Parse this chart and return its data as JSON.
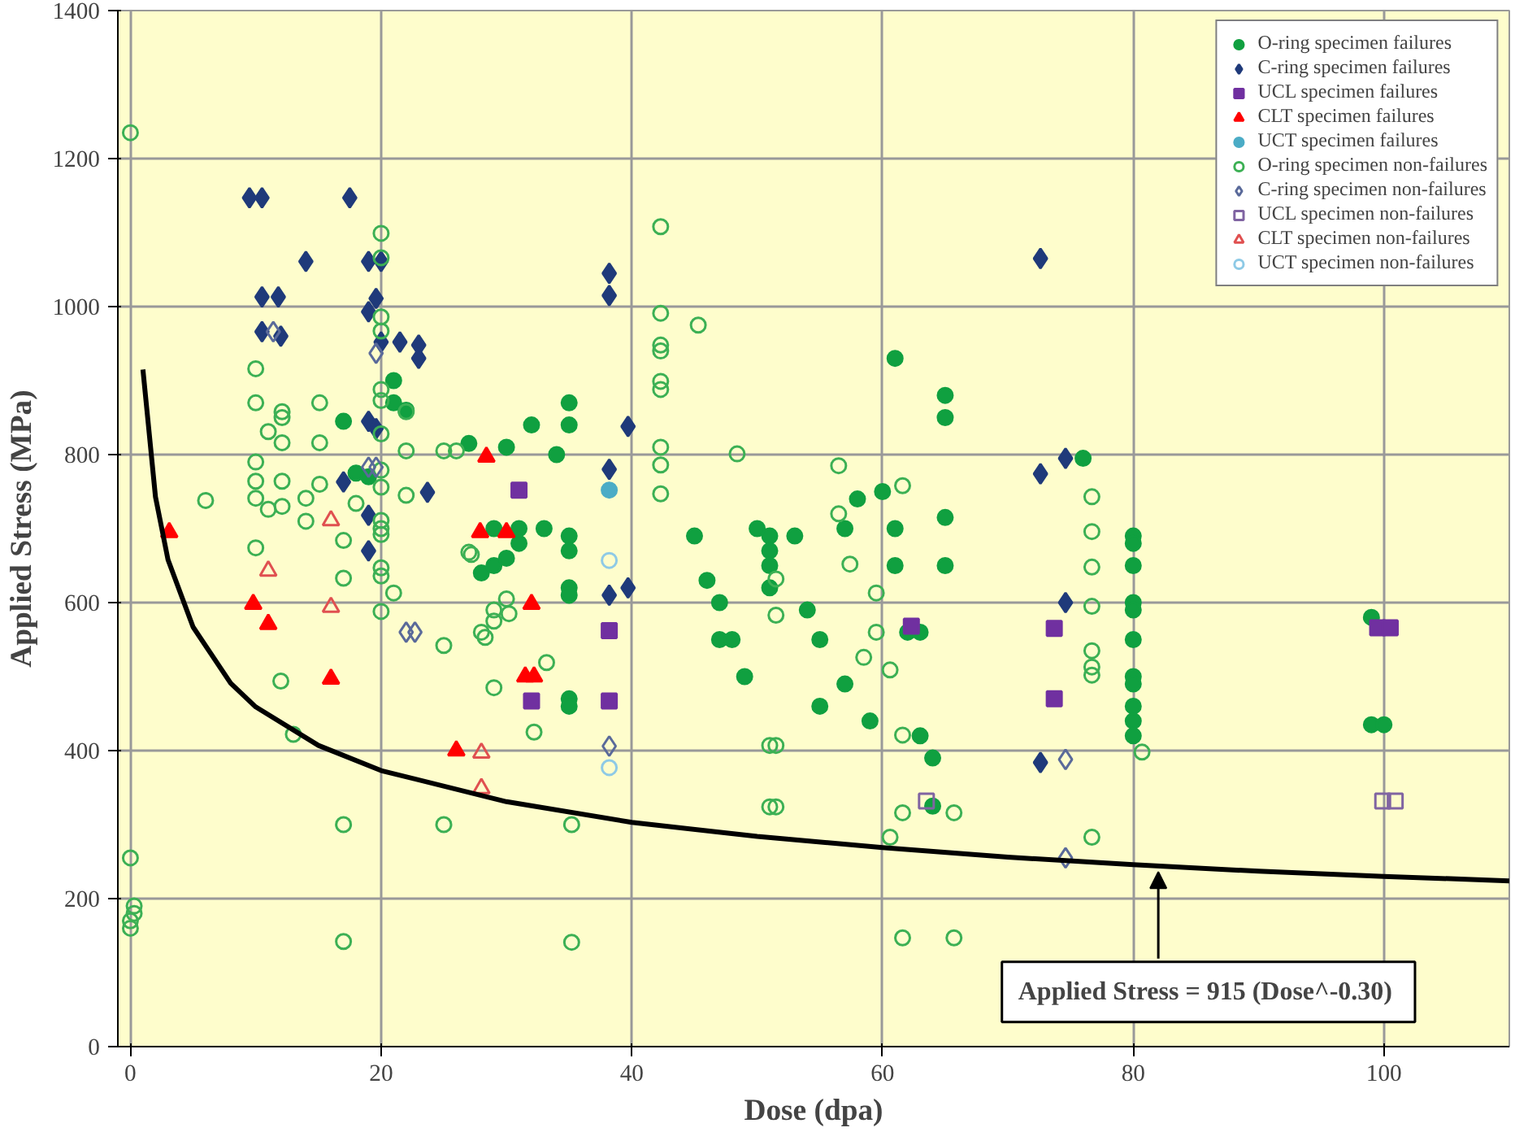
{
  "chart_data": {
    "type": "scatter",
    "xlabel": "Dose (dpa)",
    "ylabel": "Applied Stress (MPa)",
    "xlim": [
      -1,
      110
    ],
    "ylim": [
      0,
      1400
    ],
    "xticks": [
      0,
      20,
      40,
      60,
      80,
      100
    ],
    "yticks": [
      0,
      200,
      400,
      600,
      800,
      1000,
      1200,
      1400
    ],
    "grid": true,
    "legend": "top right",
    "series": [
      {
        "name": "O-ring specimen failures",
        "color": "#10a040",
        "marker": "circle",
        "x": [
          17,
          18,
          19,
          21,
          21,
          22,
          27,
          28,
          29,
          29,
          30,
          30,
          31,
          31,
          32,
          33,
          34,
          35,
          35,
          35,
          35,
          35,
          35,
          35,
          35,
          45,
          46,
          47,
          47,
          48,
          49,
          50,
          51,
          51,
          51,
          51,
          53,
          54,
          55,
          55,
          57,
          57,
          58,
          59,
          60,
          61,
          61,
          61,
          62,
          63,
          63,
          64,
          64,
          65,
          65,
          65,
          65,
          76,
          80,
          80,
          80,
          80,
          80,
          80,
          80,
          80,
          80,
          80,
          80,
          99,
          99,
          100
        ],
        "values": [
          845,
          775,
          770,
          870,
          900,
          860,
          815,
          640,
          700,
          650,
          810,
          660,
          680,
          700,
          840,
          700,
          800,
          870,
          840,
          690,
          670,
          620,
          610,
          470,
          460,
          690,
          630,
          600,
          550,
          550,
          500,
          700,
          690,
          670,
          650,
          620,
          690,
          590,
          550,
          460,
          700,
          490,
          740,
          440,
          750,
          930,
          700,
          650,
          560,
          560,
          420,
          390,
          325,
          880,
          850,
          715,
          650,
          795,
          690,
          680,
          650,
          600,
          590,
          550,
          500,
          490,
          460,
          440,
          420,
          580,
          435,
          435
        ]
      },
      {
        "name": "C-ring specimen failures",
        "color": "#1f3a7a",
        "marker": "diamond",
        "x": [
          9.5,
          10.5,
          17.5,
          14,
          19,
          20,
          10.5,
          11.8,
          19.6,
          19,
          10.5,
          12,
          20,
          21.5,
          23,
          23,
          17,
          19,
          19,
          19.6,
          19,
          23.7,
          38.2,
          38.2,
          39.7,
          38.2,
          38.2,
          39.7,
          72.6,
          72.6,
          74.6,
          74.6,
          72.6
        ],
        "values": [
          1147,
          1147,
          1147,
          1061,
          1061,
          1061,
          1013,
          1013,
          1011,
          993,
          966,
          960,
          952,
          952,
          948,
          930,
          763,
          718,
          670,
          835,
          845,
          749,
          1045,
          1015,
          838,
          780,
          610,
          620,
          1065,
          774,
          795,
          600,
          384
        ]
      },
      {
        "name": "UCL specimen failures",
        "color": "#7030a0",
        "marker": "square",
        "x": [
          31,
          32,
          38.2,
          38.2,
          62.3,
          73.7,
          73.7,
          99.5,
          100.5
        ],
        "values": [
          752,
          467,
          562,
          467,
          568,
          565,
          470,
          566,
          566
        ]
      },
      {
        "name": "CLT specimen failures",
        "color": "#ff0000",
        "marker": "triangle",
        "x": [
          3.1,
          9.8,
          11,
          16,
          26,
          28.4,
          27.9,
          30,
          32,
          31.5,
          32.2
        ],
        "values": [
          695,
          598,
          571,
          497,
          400,
          797,
          695,
          695,
          598,
          500,
          500
        ]
      },
      {
        "name": "UCT specimen failures",
        "color": "#4bacc6",
        "marker": "circle",
        "x": [
          38.2
        ],
        "values": [
          752
        ]
      },
      {
        "name": "O-ring specimen non-failures",
        "color": "#3cb054",
        "marker": "circle_open",
        "x": [
          0,
          0,
          0.3,
          0.3,
          0,
          0,
          12,
          13,
          17,
          17,
          25,
          25,
          6,
          10,
          10,
          10,
          10,
          10,
          10,
          12.1,
          12.1,
          12.1,
          12.1,
          12.1,
          11,
          11,
          15.1,
          15.1,
          15.1,
          14,
          14,
          17,
          18,
          17,
          20,
          20,
          20,
          20,
          20,
          20,
          20,
          20,
          20,
          20,
          20,
          20,
          20,
          20,
          20,
          22,
          22,
          22,
          21,
          25,
          26,
          27,
          42.3,
          42.3,
          45.3,
          42.3,
          42.3,
          42.3,
          42.3,
          42.3,
          42.3,
          42.3,
          48.4,
          27.2,
          29,
          29,
          28,
          30,
          30.2,
          28.3,
          33.2,
          29,
          32.2,
          35.2,
          35.2,
          51,
          51,
          56.5,
          61.6,
          56.5,
          57.4,
          59.5,
          51.5,
          51.5,
          59.5,
          58.5,
          60.6,
          51.5,
          51.5,
          61.6,
          61.6,
          60.6,
          65.7,
          61.6,
          65.7,
          76.7,
          76.7,
          76.7,
          76.7,
          76.7,
          76.7,
          76.7,
          76.7,
          80.7
        ],
        "values": [
          1235,
          255,
          190,
          180,
          170,
          160,
          494,
          422,
          300,
          142,
          542,
          300,
          738,
          916,
          870,
          790,
          764,
          741,
          674,
          858,
          850,
          816,
          764,
          730,
          831,
          726,
          870,
          816,
          760,
          741,
          710,
          684,
          734,
          633,
          1099,
          1066,
          986,
          967,
          888,
          873,
          828,
          779,
          756,
          711,
          700,
          692,
          647,
          636,
          588,
          858,
          805,
          745,
          613,
          805,
          805,
          668,
          1108,
          991,
          975,
          948,
          940,
          899,
          888,
          810,
          786,
          747,
          801,
          665,
          590,
          575,
          560,
          605,
          585,
          553,
          519,
          485,
          425,
          300,
          141,
          407,
          324,
          785,
          758,
          720,
          652,
          613,
          632,
          583,
          560,
          526,
          509,
          407,
          324,
          421,
          316,
          283,
          316,
          147,
          147,
          743,
          696,
          648,
          595,
          535,
          513,
          502,
          283,
          398
        ]
      },
      {
        "name": "C-ring specimen non-failures",
        "color": "#5a6a9a",
        "marker": "diamond_open",
        "x": [
          11.4,
          19.6,
          19,
          19.6,
          22,
          22.7,
          38.2,
          74.6,
          74.6
        ],
        "values": [
          966,
          937,
          783,
          783,
          560,
          560,
          406,
          388,
          255
        ]
      },
      {
        "name": "UCL specimen non-failures",
        "color": "#8064a2",
        "marker": "square_open",
        "x": [
          63.5,
          99.9,
          100.9
        ],
        "values": [
          332,
          332,
          332
        ]
      },
      {
        "name": "CLT specimen non-failures",
        "color": "#e05050",
        "marker": "triangle_open",
        "x": [
          11,
          16,
          16,
          28,
          28
        ],
        "values": [
          643,
          711,
          594,
          397,
          349
        ]
      },
      {
        "name": "UCT specimen non-failures",
        "color": "#8ecae6",
        "marker": "circle_open",
        "x": [
          38.2,
          38.2
        ],
        "values": [
          657,
          377
        ]
      },
      {
        "type": "line",
        "color": "#000000",
        "marker": "none",
        "x": [
          1,
          2,
          3,
          5,
          8,
          10,
          15,
          20,
          30,
          40,
          50,
          60,
          70,
          80,
          90,
          100,
          110
        ],
        "values": [
          915,
          743,
          658,
          567,
          491,
          459,
          407,
          373,
          331,
          303,
          284,
          269,
          256,
          246,
          237,
          230,
          224
        ]
      }
    ],
    "annotations": [
      {
        "text": "Applied Stress =  915 (Dose^-0.30)",
        "x": 82,
        "y": 244
      }
    ]
  }
}
